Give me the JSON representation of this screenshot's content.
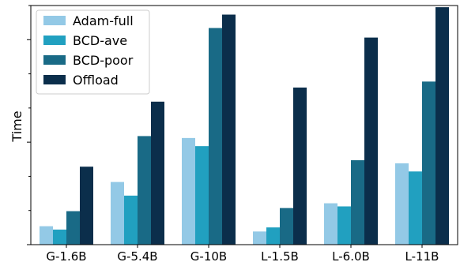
{
  "chart_data": {
    "type": "bar",
    "title": "",
    "xlabel": "",
    "ylabel": "Time",
    "ylim": [
      0,
      100
    ],
    "y_tick_labels_shown": false,
    "y_tick_count": 8,
    "grid": false,
    "legend_position": "top-left",
    "categories": [
      "G-1.6B",
      "G-5.4B",
      "G-10B",
      "L-1.5B",
      "L-6.0B",
      "L-11B"
    ],
    "series": [
      {
        "name": "Adam-full",
        "color": "#93c9e6",
        "values": [
          7.7,
          26.2,
          44.6,
          5.5,
          17.3,
          34.0
        ]
      },
      {
        "name": "BCD-ave",
        "color": "#21a0c0",
        "values": [
          6.3,
          20.5,
          41.2,
          7.2,
          16.0,
          30.6
        ]
      },
      {
        "name": "BCD-poor",
        "color": "#196a86",
        "values": [
          14.0,
          45.4,
          90.6,
          15.3,
          35.3,
          68.2
        ]
      },
      {
        "name": "Offload",
        "color": "#0b2e4b",
        "values": [
          32.6,
          59.8,
          96.2,
          65.7,
          86.6,
          99.3
        ]
      }
    ]
  }
}
